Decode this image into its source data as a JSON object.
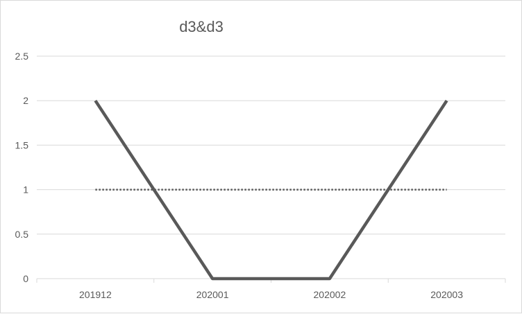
{
  "chart_data": {
    "type": "line",
    "title": "d3&d3",
    "categories": [
      "201912",
      "202001",
      "202002",
      "202003"
    ],
    "ylim": [
      0,
      2.5
    ],
    "yticks": [
      "0",
      "0.5",
      "1",
      "1.5",
      "2",
      "2.5"
    ],
    "grid": true,
    "series": [
      {
        "values": [
          2,
          0,
          0,
          2
        ],
        "color": "#595959",
        "style": "solid"
      },
      {
        "values": [
          1,
          1,
          1,
          1
        ],
        "color": "#595959",
        "style": "dotted"
      }
    ]
  }
}
